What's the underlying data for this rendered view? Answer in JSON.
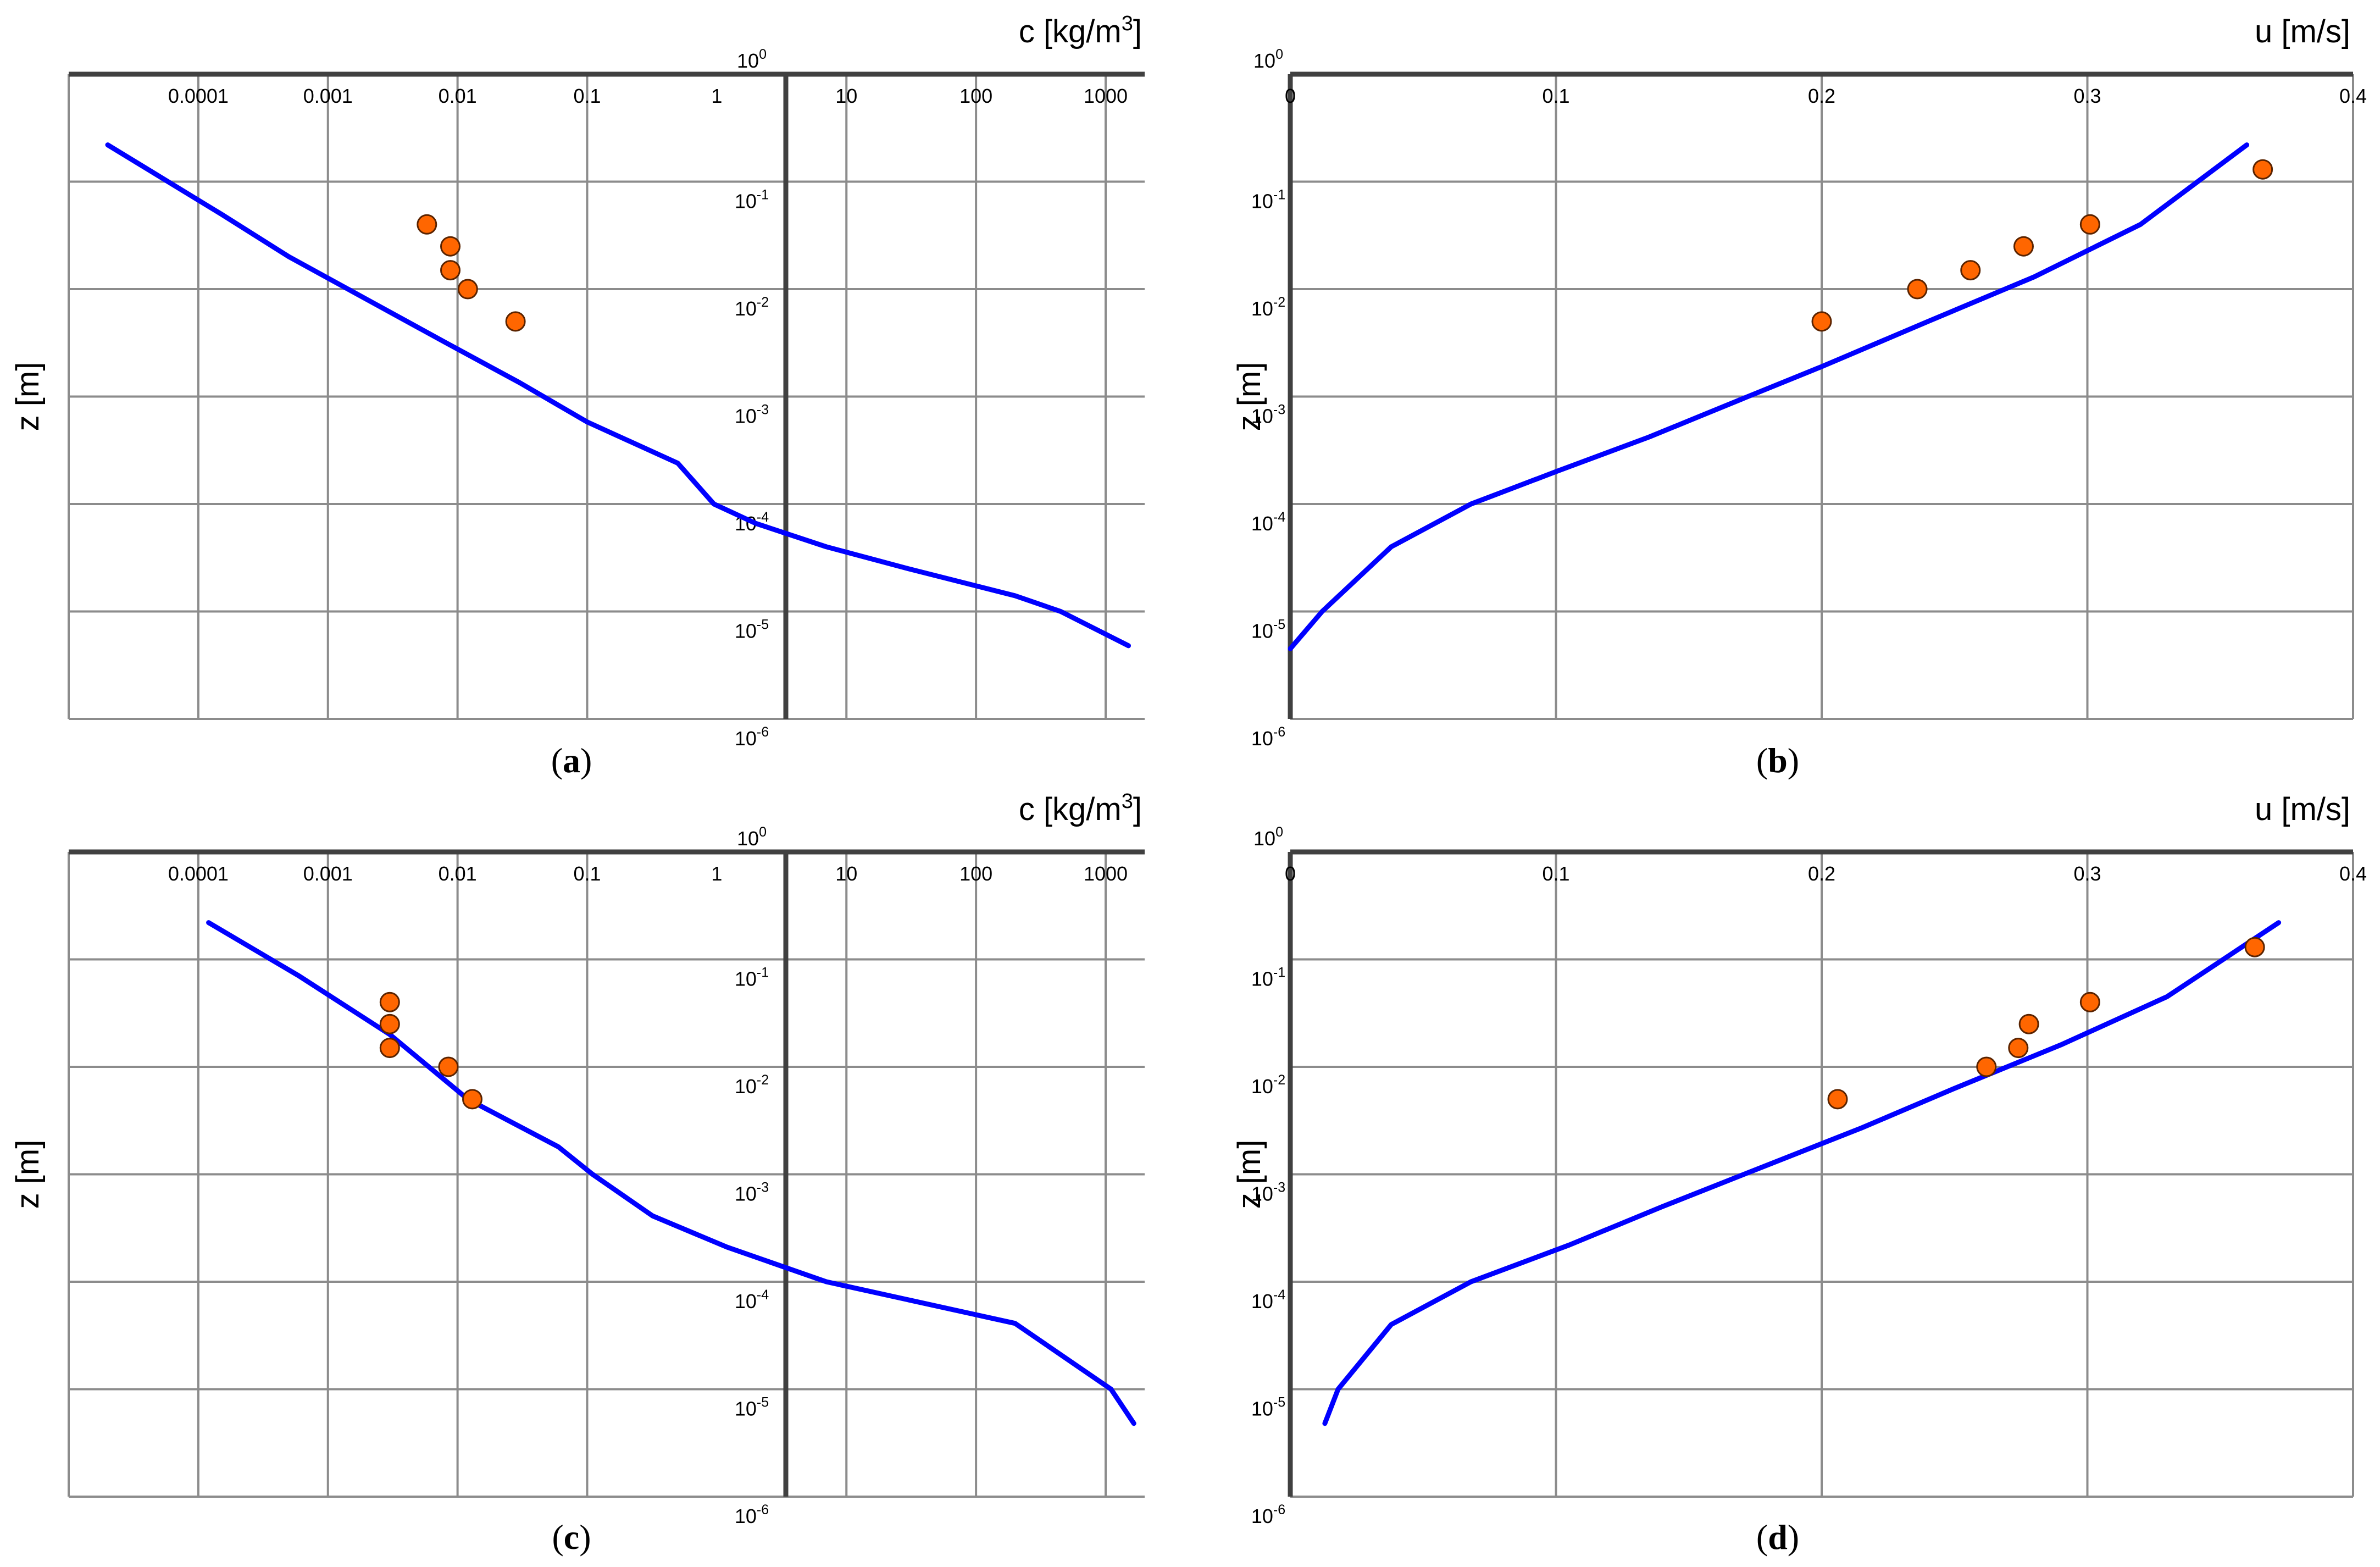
{
  "colors": {
    "grid": "#8c8c8c",
    "axis": "#404040",
    "model_line": "#0000ff",
    "measured_fill": "#ff6600",
    "measured_stroke": "#5a2300"
  },
  "chart_data": [
    {
      "panel": "a",
      "panel_label": "a",
      "type": "line",
      "x_axis_title": "c [kg/m",
      "x_axis_title_sup": "3",
      "x_axis_title_end": "]",
      "y_axis_title": "z [m]",
      "x_scale": "log",
      "y_scale": "log",
      "y_direction": "decreasing downward",
      "x_axis_position": "top",
      "xlim": [
        1e-05,
        2000
      ],
      "ylim": [
        1e-06,
        1
      ],
      "x_tick_labels": [
        "0.0001",
        "0.001",
        "0.01",
        "0.1",
        "1",
        "10",
        "100",
        "1000"
      ],
      "y_tick_base": "10",
      "y_tick_exponents": [
        "0",
        "-1",
        "-2",
        "-3",
        "-4",
        "-5",
        "-6"
      ],
      "grid": true,
      "series": [
        {
          "kind": "line",
          "x": [
            2e-05,
            0.00015,
            0.0005,
            0.002,
            0.008,
            0.03,
            0.1,
            0.5,
            0.95,
            2.0,
            7.0,
            30.0,
            200.0,
            450.0,
            1500.0
          ],
          "y": [
            0.22,
            0.05,
            0.02,
            0.008,
            0.0032,
            0.00135,
            0.00058,
            0.00024,
            0.0001,
            6.6e-05,
            4e-05,
            2.5e-05,
            1.4e-05,
            1e-05,
            4.8e-06
          ]
        },
        {
          "kind": "scatter",
          "x": [
            0.0058,
            0.0088,
            0.0088,
            0.012,
            0.028
          ],
          "y": [
            0.04,
            0.025,
            0.015,
            0.01,
            0.005
          ]
        }
      ]
    },
    {
      "panel": "b",
      "panel_label": "b",
      "type": "line",
      "x_axis_title": "u [m/s]",
      "y_axis_title": "z [m]",
      "x_scale": "linear",
      "y_scale": "log",
      "y_direction": "decreasing downward",
      "x_axis_position": "top",
      "xlim": [
        0,
        0.4
      ],
      "ylim": [
        1e-06,
        1
      ],
      "x_tick_labels": [
        "0",
        "0.1",
        "0.2",
        "0.3",
        "0.4"
      ],
      "y_tick_base": "10",
      "y_tick_exponents": [
        "0",
        "-1",
        "-2",
        "-3",
        "-4",
        "-5",
        "-6"
      ],
      "grid": true,
      "series": [
        {
          "kind": "line",
          "x": [
            0.0,
            0.012,
            0.038,
            0.068,
            0.1,
            0.135,
            0.17,
            0.2,
            0.24,
            0.28,
            0.32,
            0.36
          ],
          "y": [
            4.5e-06,
            1e-05,
            4e-05,
            0.0001,
            0.0002,
            0.00042,
            0.00095,
            0.0019,
            0.005,
            0.013,
            0.04,
            0.22
          ]
        },
        {
          "kind": "scatter",
          "x": [
            0.2,
            0.236,
            0.256,
            0.276,
            0.301,
            0.366
          ],
          "y": [
            0.005,
            0.01,
            0.015,
            0.025,
            0.04,
            0.13
          ]
        }
      ]
    },
    {
      "panel": "c",
      "panel_label": "c",
      "type": "line",
      "x_axis_title": "c [kg/m",
      "x_axis_title_sup": "3",
      "x_axis_title_end": "]",
      "y_axis_title": "z [m]",
      "x_scale": "log",
      "y_scale": "log",
      "y_direction": "decreasing downward",
      "x_axis_position": "top",
      "xlim": [
        1e-05,
        2000
      ],
      "ylim": [
        1e-06,
        1
      ],
      "x_tick_labels": [
        "0.0001",
        "0.001",
        "0.01",
        "0.1",
        "1",
        "10",
        "100",
        "1000"
      ],
      "y_tick_base": "10",
      "y_tick_exponents": [
        "0",
        "-1",
        "-2",
        "-3",
        "-4",
        "-5",
        "-6"
      ],
      "grid": true,
      "series": [
        {
          "kind": "line",
          "x": [
            0.00012,
            0.0006,
            0.003,
            0.012,
            0.06,
            0.11,
            0.32,
            1.2,
            7.0,
            200.0,
            1100.0,
            1650.0
          ],
          "y": [
            0.22,
            0.07,
            0.02,
            0.005,
            0.0018,
            0.001,
            0.00041,
            0.00021,
            0.0001,
            4.1e-05,
            1e-05,
            4.8e-06
          ]
        },
        {
          "kind": "scatter",
          "x": [
            0.003,
            0.003,
            0.003,
            0.0085,
            0.013
          ],
          "y": [
            0.04,
            0.025,
            0.015,
            0.01,
            0.005
          ]
        }
      ]
    },
    {
      "panel": "d",
      "panel_label": "d",
      "type": "line",
      "x_axis_title": "u [m/s]",
      "y_axis_title": "z [m]",
      "x_scale": "linear",
      "y_scale": "log",
      "y_direction": "decreasing downward",
      "x_axis_position": "top",
      "xlim": [
        0,
        0.4
      ],
      "ylim": [
        1e-06,
        1
      ],
      "x_tick_labels": [
        "0",
        "0.1",
        "0.2",
        "0.3",
        "0.4"
      ],
      "y_tick_base": "10",
      "y_tick_exponents": [
        "0",
        "-1",
        "-2",
        "-3",
        "-4",
        "-5",
        "-6"
      ],
      "grid": true,
      "series": [
        {
          "kind": "line",
          "x": [
            0.013,
            0.018,
            0.038,
            0.068,
            0.105,
            0.14,
            0.175,
            0.215,
            0.25,
            0.29,
            0.33,
            0.372
          ],
          "y": [
            4.8e-06,
            1e-05,
            4e-05,
            0.0001,
            0.00022,
            0.0005,
            0.0011,
            0.0027,
            0.0063,
            0.016,
            0.045,
            0.22
          ]
        },
        {
          "kind": "scatter",
          "x": [
            0.206,
            0.262,
            0.274,
            0.278,
            0.301,
            0.363
          ],
          "y": [
            0.005,
            0.01,
            0.015,
            0.025,
            0.04,
            0.13
          ]
        }
      ]
    }
  ]
}
